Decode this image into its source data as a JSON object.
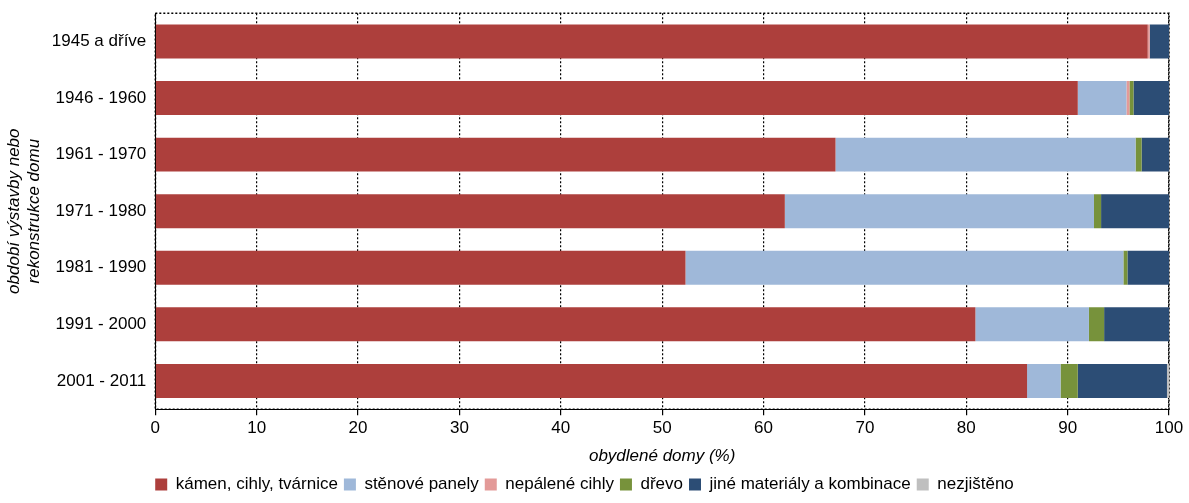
{
  "chart_data": {
    "type": "bar",
    "orientation": "horizontal",
    "stacked": true,
    "categories": [
      "1945 a dříve",
      "1946 - 1960",
      "1961 - 1970",
      "1971 - 1980",
      "1981 - 1990",
      "1991 - 2000",
      "2001 - 2011"
    ],
    "series": [
      {
        "name": "kámen, cihly, tvárnice",
        "color": "#ad3f3c",
        "values": [
          97.9,
          91.0,
          67.1,
          62.1,
          52.3,
          80.9,
          86.0
        ]
      },
      {
        "name": "stěnové panely",
        "color": "#9fb8d9",
        "values": [
          0,
          4.8,
          29.6,
          30.5,
          43.2,
          11.2,
          3.3
        ]
      },
      {
        "name": "nepálené cihly",
        "color": "#e39a98",
        "values": [
          0.2,
          0.3,
          0,
          0,
          0,
          0,
          0
        ]
      },
      {
        "name": "dřevo",
        "color": "#77923b",
        "values": [
          0,
          0.4,
          0.6,
          0.7,
          0.4,
          1.5,
          1.7
        ]
      },
      {
        "name": "jiné materiály a kombinace",
        "color": "#2c4d75",
        "values": [
          1.9,
          3.5,
          2.7,
          6.7,
          4.1,
          6.4,
          8.8
        ]
      },
      {
        "name": "nezjištěno",
        "color": "#bfbfbf",
        "values": [
          0,
          0,
          0,
          0,
          0,
          0,
          0.2
        ]
      }
    ],
    "xlim": [
      0,
      100
    ],
    "xticks": [
      0,
      10,
      20,
      30,
      40,
      50,
      60,
      70,
      80,
      90,
      100
    ],
    "xlabel": "obydlené domy (%)",
    "ylabel": "období výstavby nebo\nrekonstrukce domu",
    "grid": "x",
    "legend": "bottom"
  }
}
